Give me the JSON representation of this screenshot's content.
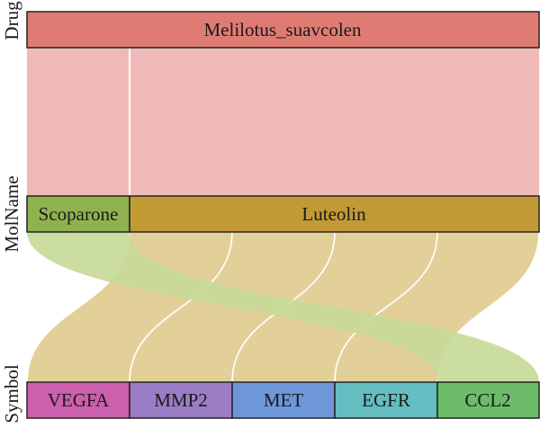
{
  "axes": [
    "Drug",
    "MolName",
    "Symbol"
  ],
  "nodes": {
    "drug": [
      {
        "id": "melilotus",
        "label": "Melilotus_suavcolen",
        "color": "#e07b74"
      }
    ],
    "molname": [
      {
        "id": "scoparone",
        "label": "Scoparone",
        "color": "#8fb24f"
      },
      {
        "id": "luteolin",
        "label": "Luteolin",
        "color": "#c29a35"
      }
    ],
    "symbol": [
      {
        "id": "vegfa",
        "label": "VEGFA",
        "color": "#cc5fae"
      },
      {
        "id": "mmp2",
        "label": "MMP2",
        "color": "#9a7dc4"
      },
      {
        "id": "met",
        "label": "MET",
        "color": "#6d97d8"
      },
      {
        "id": "egfr",
        "label": "EGFR",
        "color": "#64bdc1"
      },
      {
        "id": "ccl2",
        "label": "CCL2",
        "color": "#6cbc6a"
      }
    ]
  },
  "links": [
    {
      "from": "melilotus",
      "to": "scoparone",
      "color": "#efb9b7"
    },
    {
      "from": "melilotus",
      "to": "luteolin",
      "color": "#efb9b7"
    },
    {
      "from": "luteolin",
      "to": "vegfa",
      "color": "#e3cf98"
    },
    {
      "from": "luteolin",
      "to": "mmp2",
      "color": "#e3cf98"
    },
    {
      "from": "luteolin",
      "to": "met",
      "color": "#e3cf98"
    },
    {
      "from": "luteolin",
      "to": "egfr",
      "color": "#e3cf98"
    },
    {
      "from": "scoparone",
      "to": "ccl2",
      "color": "#c6d998"
    }
  ]
}
